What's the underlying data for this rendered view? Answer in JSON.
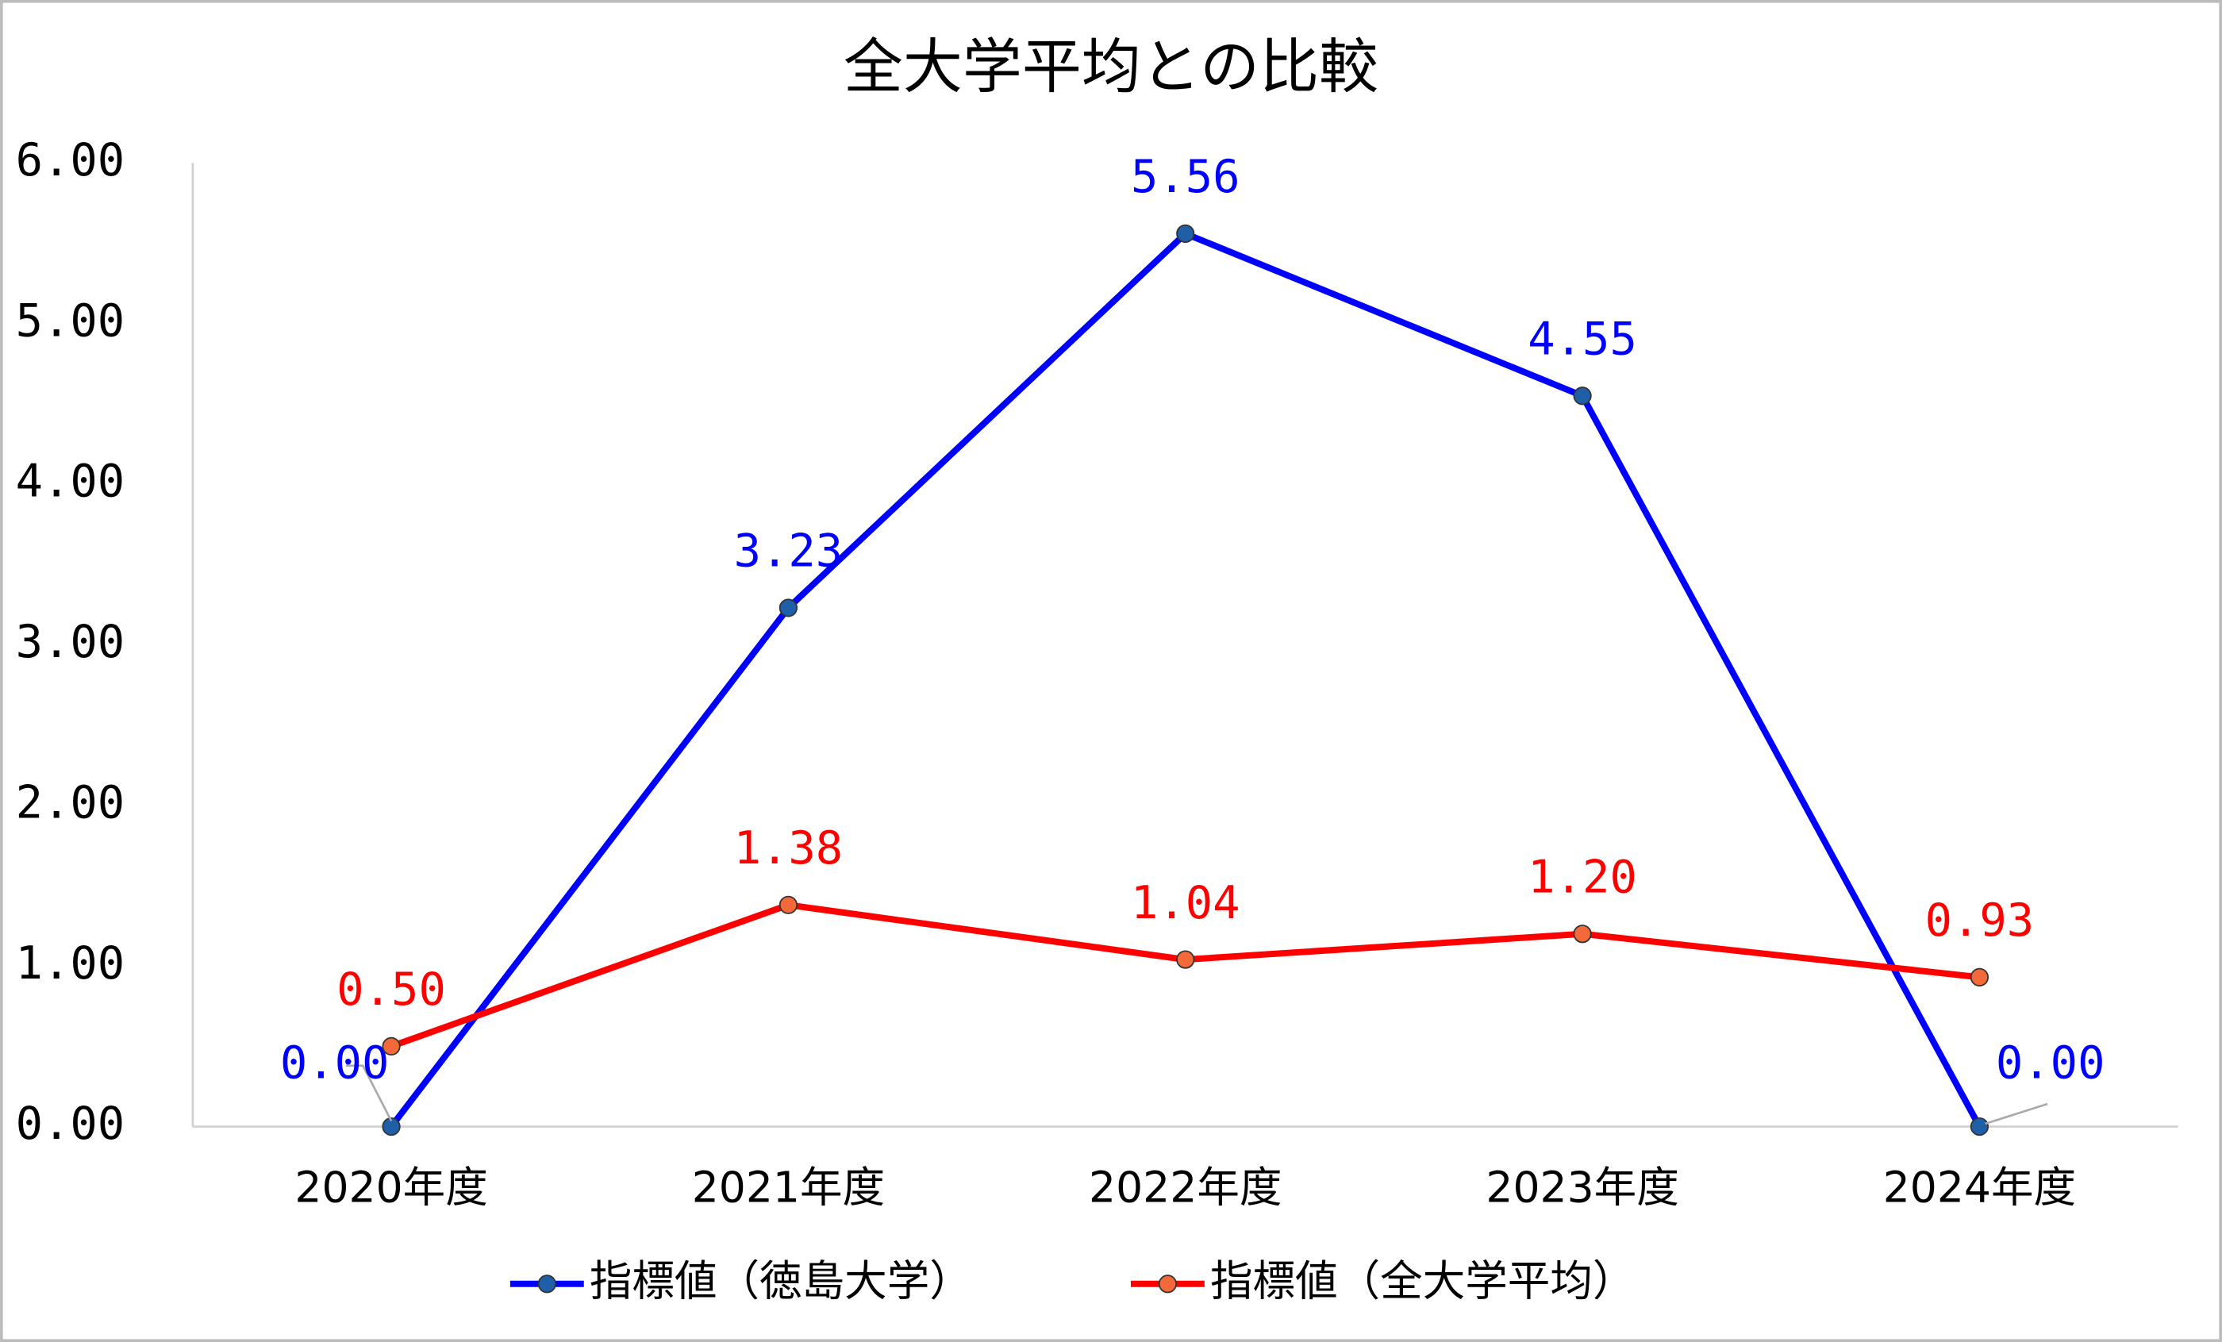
{
  "chart_data": {
    "type": "line",
    "title": "全大学平均との比較",
    "categories": [
      "2020年度",
      "2021年度",
      "2022年度",
      "2023年度",
      "2024年度"
    ],
    "series": [
      {
        "name": "指標値（徳島大学）",
        "color": "#0000ff",
        "marker_color": "#1f5fa8",
        "values": [
          0,
          3.23,
          5.56,
          4.55,
          0
        ],
        "value_labels": [
          "0.00",
          "3.23",
          "5.56",
          "4.55",
          "0.00"
        ]
      },
      {
        "name": "指標値（全大学平均）",
        "color": "#ff0000",
        "marker_color": "#f4693a",
        "values": [
          0.5,
          1.38,
          1.04,
          1.2,
          0.93
        ],
        "value_labels": [
          "0.50",
          "1.38",
          "1.04",
          "1.20",
          "0.93"
        ]
      }
    ],
    "ylim": [
      0,
      6
    ],
    "yticks": [
      {
        "value": 0,
        "label": "0.00"
      },
      {
        "value": 1,
        "label": "1.00"
      },
      {
        "value": 2,
        "label": "2.00"
      },
      {
        "value": 3,
        "label": "3.00"
      },
      {
        "value": 4,
        "label": "4.00"
      },
      {
        "value": 5,
        "label": "5.00"
      },
      {
        "value": 6,
        "label": "6.00"
      }
    ],
    "grid": false,
    "legend": "bottom"
  }
}
